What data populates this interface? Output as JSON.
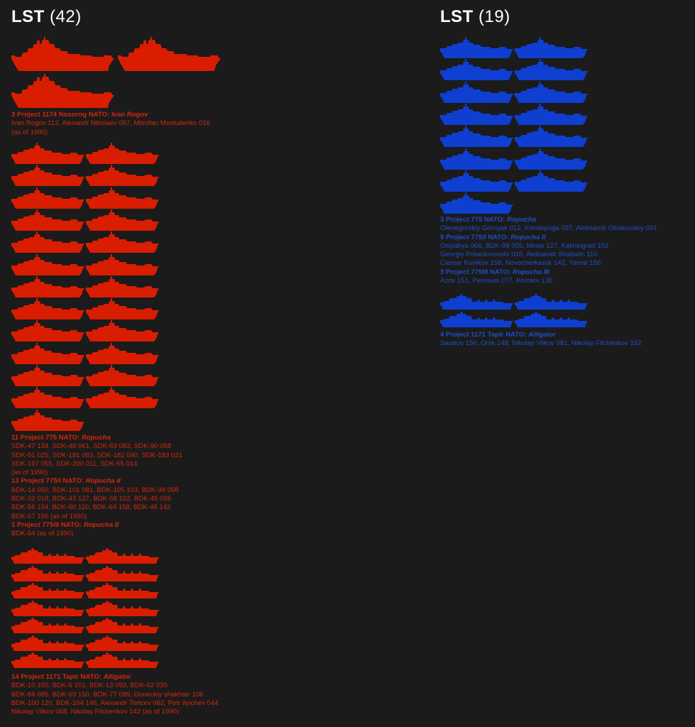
{
  "colors": {
    "ussr": "#d91d00",
    "russia": "#0e3fd0",
    "background": "#1b1b1b",
    "heading": "#ffffff"
  },
  "left": {
    "heading": {
      "label": "LST",
      "count": "(42)"
    },
    "groups": [
      {
        "class_icon": "large-lst-silhouette",
        "ship_count": 3,
        "title_prefix": "3 Project 1174 Nosorog  NATO: ",
        "title_nato": "Ivan Rogov",
        "lines": [
          "Ivan Rogov 113, Alexandr Nikolaev 057, Mitrofan Moskalenko 016",
          "(as of 1990)"
        ]
      },
      {
        "class_icon": "ropucha-silhouette",
        "ship_count": 25,
        "sections": [
          {
            "title_prefix": "11 Project 775  NATO: ",
            "title_nato": "Ropucha",
            "lines": [
              "SDK-47 134, SDK-48  061, SDK-63 083, SDK-90 058",
              "SDK-91 025, SDK-181 083, SDK-182 040, SDK-183 021",
              "SDK-197 055, SDK-200 011, SDK-55  014",
              "(as of 1990)"
            ]
          },
          {
            "title_prefix": "13 Project 775/I  NATO: ",
            "title_nato": "Ropucha II",
            "lines": [
              "BDK-14 050, BDK-101 081, BDK-105 103, BDK-98 058",
              "BDK-32 018, BDK-43 127, BDK-58  102, BDK-45  036",
              "BDK-56 154, BDK-60 110, BDK-64 158, BDK-46 142",
              "BDK-67 156 (as of 1990)"
            ]
          },
          {
            "title_prefix": "1 Project 775/II  NATO: ",
            "title_nato": "Ropucha II",
            "lines": [
              "BDK-54 (as of 1990)"
            ]
          }
        ]
      },
      {
        "class_icon": "alligator-silhouette",
        "ship_count": 14,
        "title_prefix": "14 Project 1171 Tapir  NATO: ",
        "title_nato": "Alligator",
        "lines": [
          "BDK-10 150, BDK-6  151, BDK-13 093, BDK-62 030",
          "BDK-66 085, BDK-69 150, BDK-77 099, Doneckiy shakhter 106",
          "BDK-100 120, BDK-104 146, Alexandr Tortcev 062, Petr Ilyichev 044",
          "Nikolay Vilkov 068, Nikolay Filchenkov 142 (as of 1990)"
        ]
      }
    ]
  },
  "right": {
    "heading": {
      "label": "LST",
      "count": "(19)"
    },
    "groups": [
      {
        "class_icon": "ropucha-silhouette",
        "ship_count": 15,
        "sections": [
          {
            "title_prefix": "3 Project 775  NATO: ",
            "title_nato": "Ropucha",
            "lines": [
              "Olenegorskiy Gornyak 012, Kondopoga 027, Aleksandr Otrakovskiy 031"
            ]
          },
          {
            "title_prefix": "9 Project 775/I  NATO: ",
            "title_nato": "Ropucha II",
            "lines": [
              "Oslyabya 066, BDK-98 055, Minsk 127, Kaliningrad 102",
              "Georgiy Pobedonosets 016, Aleksandr Shabalin 110",
              "Caesar Kunikov 158, Novocherkassk 142, Yamal 156"
            ]
          },
          {
            "title_prefix": "3 Project 775M  NATO: ",
            "title_nato": "Ropucha III",
            "lines": [
              "Azov 151, Peresvet 077, Korolev 130"
            ]
          }
        ]
      },
      {
        "class_icon": "alligator-silhouette",
        "ship_count": 4,
        "title_prefix": "4 Project 1171 Tapir  NATO: ",
        "title_nato": "Alligator",
        "lines": [
          "Saratov 150, Orsk 148, Nikolay Vilkov 081, Nikolay Filchenkov 152"
        ]
      }
    ]
  }
}
